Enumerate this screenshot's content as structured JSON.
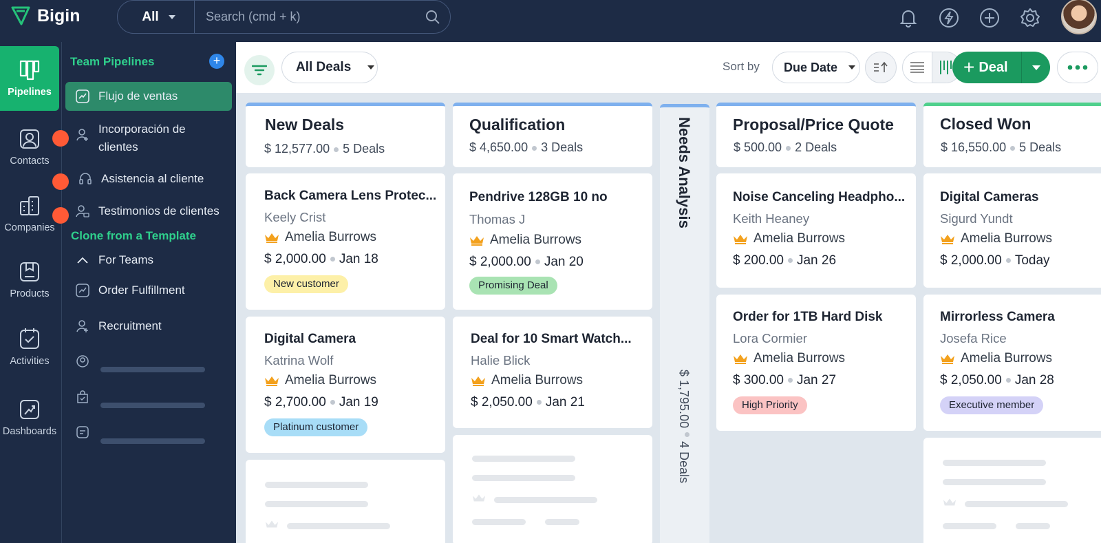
{
  "app": {
    "name": "Bigin"
  },
  "search": {
    "scope": "All",
    "placeholder": "Search (cmd + k)"
  },
  "topbar_icons": [
    "bell-icon",
    "lightning-icon",
    "plus-circle-icon",
    "gear-icon",
    "avatar"
  ],
  "rail": {
    "items": [
      {
        "label": "Pipelines",
        "icon": "pipelines-icon",
        "active": true
      },
      {
        "label": "Contacts",
        "icon": "contacts-icon"
      },
      {
        "label": "Companies",
        "icon": "companies-icon"
      },
      {
        "label": "Products",
        "icon": "products-icon"
      },
      {
        "label": "Activities",
        "icon": "activities-icon"
      },
      {
        "label": "Dashboards",
        "icon": "dashboards-icon"
      }
    ]
  },
  "panel": {
    "team_pipelines_title": "Team Pipelines",
    "pipelines": [
      {
        "label": "Flujo de ventas",
        "active": true
      },
      {
        "label_line1": "Incorporación de",
        "label_line2": "clientes"
      },
      {
        "label": "Asistencia al cliente"
      },
      {
        "label": "Testimonios de clientes"
      }
    ],
    "clone_title": "Clone from a Template",
    "for_teams_label": "For Teams",
    "templates": [
      {
        "label": "Order Fulfillment"
      },
      {
        "label": "Recruitment"
      }
    ]
  },
  "toolbar": {
    "view_label": "All Deals",
    "sort_by_label": "Sort by",
    "sort_value": "Due Date",
    "deal_button_label": "Deal"
  },
  "columns": [
    {
      "title": "New Deals",
      "amount": "$ 12,577.00",
      "count": "5 Deals",
      "cards": [
        {
          "title": "Back Camera Lens Protec...",
          "contact": "Keely Crist",
          "owner": "Amelia Burrows",
          "amount": "$ 2,000.00",
          "date": "Jan 18",
          "tag": "New customer",
          "tag_color": "#fdf0a8"
        },
        {
          "title": "Digital Camera",
          "contact": "Katrina Wolf",
          "owner": "Amelia Burrows",
          "amount": "$ 2,700.00",
          "date": "Jan 19",
          "tag": "Platinum customer",
          "tag_color": "#a8ddf7"
        }
      ]
    },
    {
      "title": "Qualification",
      "amount": "$ 4,650.00",
      "count": "3 Deals",
      "cards": [
        {
          "title": "Pendrive 128GB 10 no",
          "contact": "Thomas J",
          "owner": "Amelia Burrows",
          "amount": "$ 2,000.00",
          "date": "Jan 20",
          "tag": "Promising Deal",
          "tag_color": "#a9e3b3"
        },
        {
          "title": "Deal for 10 Smart Watch...",
          "contact": "Halie Blick",
          "owner": "Amelia Burrows",
          "amount": "$ 2,050.00",
          "date": "Jan 21"
        }
      ]
    },
    {
      "title": "Needs Analysis",
      "amount": "$ 1,795.00",
      "count": "4 Deals",
      "collapsed": true
    },
    {
      "title": "Proposal/Price Quote",
      "amount": "$ 500.00",
      "count": "2 Deals",
      "cards": [
        {
          "title": "Noise Canceling Headpho...",
          "contact": "Keith Heaney",
          "owner": "Amelia Burrows",
          "amount": "$ 200.00",
          "date": "Jan 26"
        },
        {
          "title": "Order for 1TB Hard Disk",
          "contact": "Lora Cormier",
          "owner": "Amelia Burrows",
          "amount": "$ 300.00",
          "date": "Jan 27",
          "tag": "High Priority",
          "tag_color": "#fbc3c3"
        }
      ]
    },
    {
      "title": "Closed Won",
      "amount": "$ 16,550.00",
      "count": "5 Deals",
      "cards": [
        {
          "title": "Digital Cameras",
          "contact": "Sigurd Yundt",
          "owner": "Amelia Burrows",
          "amount": "$ 2,000.00",
          "date": "Today"
        },
        {
          "title": "Mirrorless Camera",
          "contact": "Josefa Rice",
          "owner": "Amelia Burrows",
          "amount": "$ 2,050.00",
          "date": "Jan 28",
          "tag": "Executive member",
          "tag_color": "#d4d2f7"
        }
      ]
    }
  ],
  "colors": {
    "brand_green": "#17b26f",
    "nav_bg": "#1d2b45",
    "panel_accent": "#2fcf8c",
    "stage_bar": "#7eb0ee",
    "won_bar": "#4fd08c"
  }
}
